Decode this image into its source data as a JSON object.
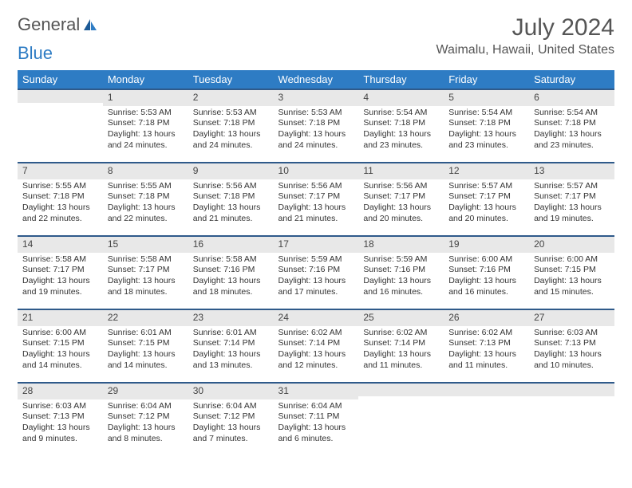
{
  "logo": {
    "text1": "General",
    "text2": "Blue"
  },
  "title": "July 2024",
  "location": "Waimalu, Hawaii, United States",
  "header_bg": "#2e7cc4",
  "daynum_bg": "#e8e8e8",
  "row_border": "#2f5a8a",
  "weekdays": [
    "Sunday",
    "Monday",
    "Tuesday",
    "Wednesday",
    "Thursday",
    "Friday",
    "Saturday"
  ],
  "weeks": [
    [
      {
        "n": "",
        "lines": []
      },
      {
        "n": "1",
        "lines": [
          "Sunrise: 5:53 AM",
          "Sunset: 7:18 PM",
          "Daylight: 13 hours and 24 minutes."
        ]
      },
      {
        "n": "2",
        "lines": [
          "Sunrise: 5:53 AM",
          "Sunset: 7:18 PM",
          "Daylight: 13 hours and 24 minutes."
        ]
      },
      {
        "n": "3",
        "lines": [
          "Sunrise: 5:53 AM",
          "Sunset: 7:18 PM",
          "Daylight: 13 hours and 24 minutes."
        ]
      },
      {
        "n": "4",
        "lines": [
          "Sunrise: 5:54 AM",
          "Sunset: 7:18 PM",
          "Daylight: 13 hours and 23 minutes."
        ]
      },
      {
        "n": "5",
        "lines": [
          "Sunrise: 5:54 AM",
          "Sunset: 7:18 PM",
          "Daylight: 13 hours and 23 minutes."
        ]
      },
      {
        "n": "6",
        "lines": [
          "Sunrise: 5:54 AM",
          "Sunset: 7:18 PM",
          "Daylight: 13 hours and 23 minutes."
        ]
      }
    ],
    [
      {
        "n": "7",
        "lines": [
          "Sunrise: 5:55 AM",
          "Sunset: 7:18 PM",
          "Daylight: 13 hours and 22 minutes."
        ]
      },
      {
        "n": "8",
        "lines": [
          "Sunrise: 5:55 AM",
          "Sunset: 7:18 PM",
          "Daylight: 13 hours and 22 minutes."
        ]
      },
      {
        "n": "9",
        "lines": [
          "Sunrise: 5:56 AM",
          "Sunset: 7:18 PM",
          "Daylight: 13 hours and 21 minutes."
        ]
      },
      {
        "n": "10",
        "lines": [
          "Sunrise: 5:56 AM",
          "Sunset: 7:17 PM",
          "Daylight: 13 hours and 21 minutes."
        ]
      },
      {
        "n": "11",
        "lines": [
          "Sunrise: 5:56 AM",
          "Sunset: 7:17 PM",
          "Daylight: 13 hours and 20 minutes."
        ]
      },
      {
        "n": "12",
        "lines": [
          "Sunrise: 5:57 AM",
          "Sunset: 7:17 PM",
          "Daylight: 13 hours and 20 minutes."
        ]
      },
      {
        "n": "13",
        "lines": [
          "Sunrise: 5:57 AM",
          "Sunset: 7:17 PM",
          "Daylight: 13 hours and 19 minutes."
        ]
      }
    ],
    [
      {
        "n": "14",
        "lines": [
          "Sunrise: 5:58 AM",
          "Sunset: 7:17 PM",
          "Daylight: 13 hours and 19 minutes."
        ]
      },
      {
        "n": "15",
        "lines": [
          "Sunrise: 5:58 AM",
          "Sunset: 7:17 PM",
          "Daylight: 13 hours and 18 minutes."
        ]
      },
      {
        "n": "16",
        "lines": [
          "Sunrise: 5:58 AM",
          "Sunset: 7:16 PM",
          "Daylight: 13 hours and 18 minutes."
        ]
      },
      {
        "n": "17",
        "lines": [
          "Sunrise: 5:59 AM",
          "Sunset: 7:16 PM",
          "Daylight: 13 hours and 17 minutes."
        ]
      },
      {
        "n": "18",
        "lines": [
          "Sunrise: 5:59 AM",
          "Sunset: 7:16 PM",
          "Daylight: 13 hours and 16 minutes."
        ]
      },
      {
        "n": "19",
        "lines": [
          "Sunrise: 6:00 AM",
          "Sunset: 7:16 PM",
          "Daylight: 13 hours and 16 minutes."
        ]
      },
      {
        "n": "20",
        "lines": [
          "Sunrise: 6:00 AM",
          "Sunset: 7:15 PM",
          "Daylight: 13 hours and 15 minutes."
        ]
      }
    ],
    [
      {
        "n": "21",
        "lines": [
          "Sunrise: 6:00 AM",
          "Sunset: 7:15 PM",
          "Daylight: 13 hours and 14 minutes."
        ]
      },
      {
        "n": "22",
        "lines": [
          "Sunrise: 6:01 AM",
          "Sunset: 7:15 PM",
          "Daylight: 13 hours and 14 minutes."
        ]
      },
      {
        "n": "23",
        "lines": [
          "Sunrise: 6:01 AM",
          "Sunset: 7:14 PM",
          "Daylight: 13 hours and 13 minutes."
        ]
      },
      {
        "n": "24",
        "lines": [
          "Sunrise: 6:02 AM",
          "Sunset: 7:14 PM",
          "Daylight: 13 hours and 12 minutes."
        ]
      },
      {
        "n": "25",
        "lines": [
          "Sunrise: 6:02 AM",
          "Sunset: 7:14 PM",
          "Daylight: 13 hours and 11 minutes."
        ]
      },
      {
        "n": "26",
        "lines": [
          "Sunrise: 6:02 AM",
          "Sunset: 7:13 PM",
          "Daylight: 13 hours and 11 minutes."
        ]
      },
      {
        "n": "27",
        "lines": [
          "Sunrise: 6:03 AM",
          "Sunset: 7:13 PM",
          "Daylight: 13 hours and 10 minutes."
        ]
      }
    ],
    [
      {
        "n": "28",
        "lines": [
          "Sunrise: 6:03 AM",
          "Sunset: 7:13 PM",
          "Daylight: 13 hours and 9 minutes."
        ]
      },
      {
        "n": "29",
        "lines": [
          "Sunrise: 6:04 AM",
          "Sunset: 7:12 PM",
          "Daylight: 13 hours and 8 minutes."
        ]
      },
      {
        "n": "30",
        "lines": [
          "Sunrise: 6:04 AM",
          "Sunset: 7:12 PM",
          "Daylight: 13 hours and 7 minutes."
        ]
      },
      {
        "n": "31",
        "lines": [
          "Sunrise: 6:04 AM",
          "Sunset: 7:11 PM",
          "Daylight: 13 hours and 6 minutes."
        ]
      },
      {
        "n": "",
        "lines": []
      },
      {
        "n": "",
        "lines": []
      },
      {
        "n": "",
        "lines": []
      }
    ]
  ]
}
